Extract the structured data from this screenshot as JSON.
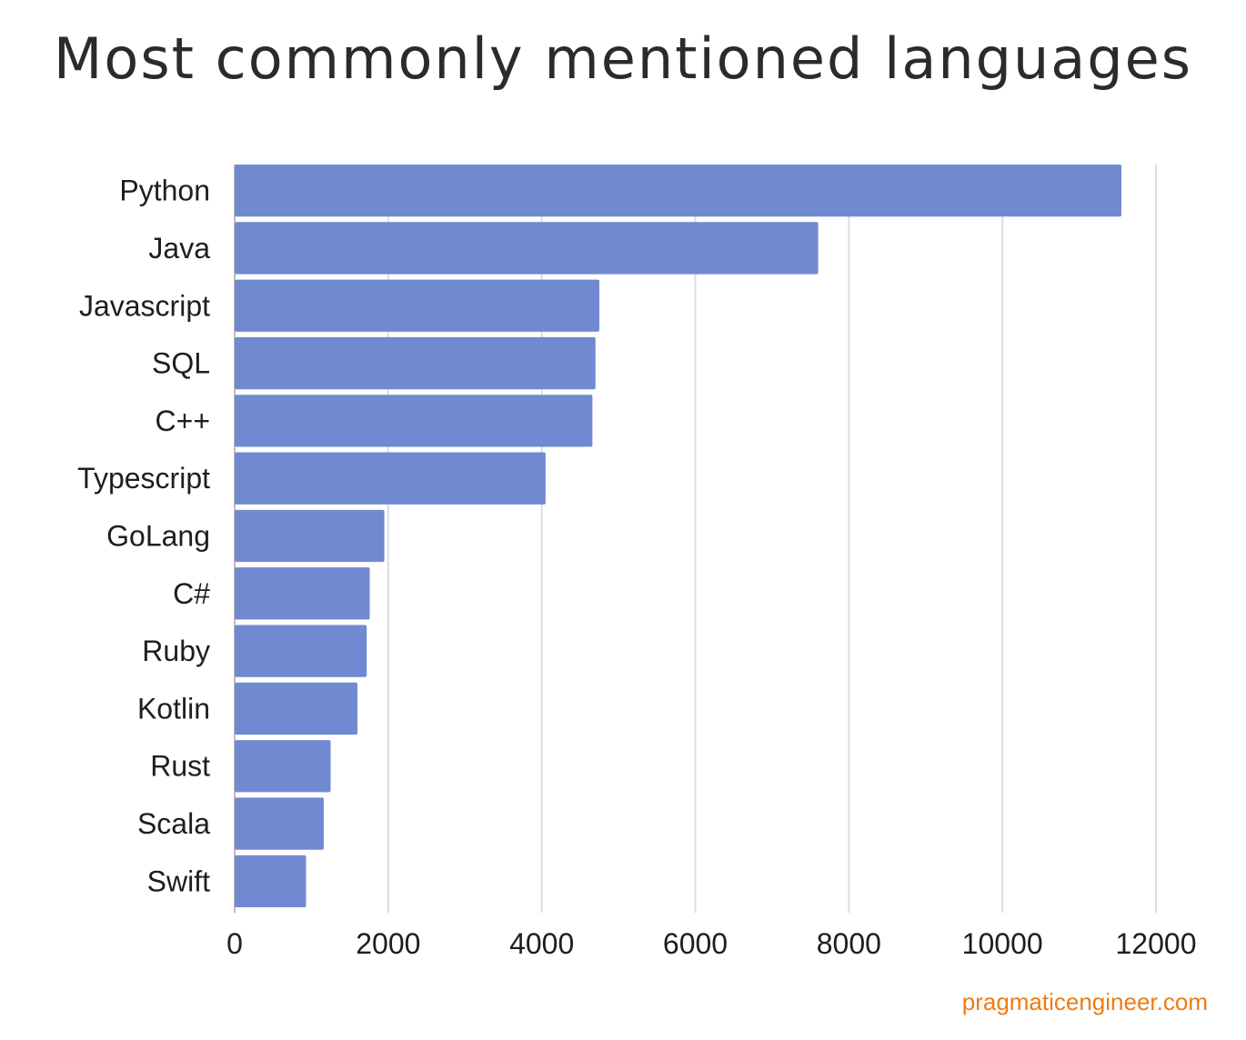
{
  "chart_data": {
    "type": "bar",
    "orientation": "horizontal",
    "title": "Most commonly mentioned languages",
    "categories": [
      "Python",
      "Java",
      "Javascript",
      "SQL",
      "C++",
      "Typescript",
      "GoLang",
      "C#",
      "Ruby",
      "Kotlin",
      "Rust",
      "Scala",
      "Swift"
    ],
    "values": [
      11550,
      7600,
      4750,
      4700,
      4660,
      4050,
      1950,
      1760,
      1720,
      1600,
      1250,
      1160,
      930
    ],
    "xlim": [
      0,
      12000
    ],
    "xticks": [
      0,
      2000,
      4000,
      6000,
      8000,
      10000,
      12000
    ],
    "xlabel": "",
    "ylabel": "",
    "grid": "vertical",
    "legend": "none",
    "bar_color": "#7189d0",
    "grid_color": "#dcdcdc"
  },
  "source": "pragmaticengineer.com"
}
